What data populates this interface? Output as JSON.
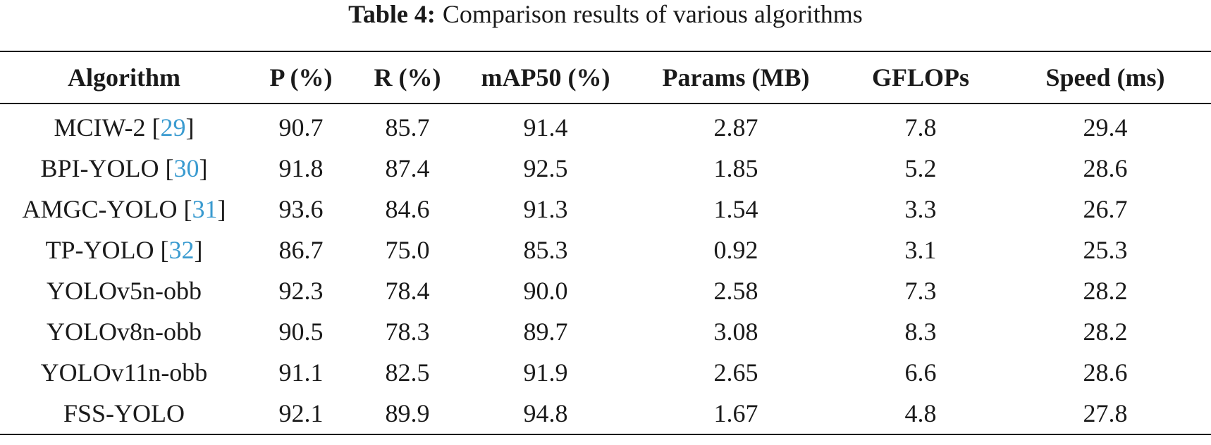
{
  "caption": {
    "label": "Table 4:",
    "text": "Comparison results of various algorithms"
  },
  "table": {
    "headers": [
      "Algorithm",
      "P (%)",
      "R (%)",
      "mAP50 (%)",
      "Params (MB)",
      "GFLOPs",
      "Speed (ms)"
    ],
    "rows": [
      {
        "name": "MCIW-2 ",
        "ref": "29",
        "p": "90.7",
        "r": "85.7",
        "map50": "91.4",
        "params": "2.87",
        "gflops": "7.8",
        "speed": "29.4"
      },
      {
        "name": "BPI-YOLO ",
        "ref": "30",
        "p": "91.8",
        "r": "87.4",
        "map50": "92.5",
        "params": "1.85",
        "gflops": "5.2",
        "speed": "28.6"
      },
      {
        "name": "AMGC-YOLO ",
        "ref": "31",
        "p": "93.6",
        "r": "84.6",
        "map50": "91.3",
        "params": "1.54",
        "gflops": "3.3",
        "speed": "26.7"
      },
      {
        "name": "TP-YOLO ",
        "ref": "32",
        "p": "86.7",
        "r": "75.0",
        "map50": "85.3",
        "params": "0.92",
        "gflops": "3.1",
        "speed": "25.3"
      },
      {
        "name": "YOLOv5n-obb",
        "ref": "",
        "p": "92.3",
        "r": "78.4",
        "map50": "90.0",
        "params": "2.58",
        "gflops": "7.3",
        "speed": "28.2"
      },
      {
        "name": "YOLOv8n-obb",
        "ref": "",
        "p": "90.5",
        "r": "78.3",
        "map50": "89.7",
        "params": "3.08",
        "gflops": "8.3",
        "speed": "28.2"
      },
      {
        "name": "YOLOv11n-obb",
        "ref": "",
        "p": "91.1",
        "r": "82.5",
        "map50": "91.9",
        "params": "2.65",
        "gflops": "6.6",
        "speed": "28.6"
      },
      {
        "name": "FSS-YOLO",
        "ref": "",
        "p": "92.1",
        "r": "89.9",
        "map50": "94.8",
        "params": "1.67",
        "gflops": "4.8",
        "speed": "27.8"
      }
    ]
  }
}
